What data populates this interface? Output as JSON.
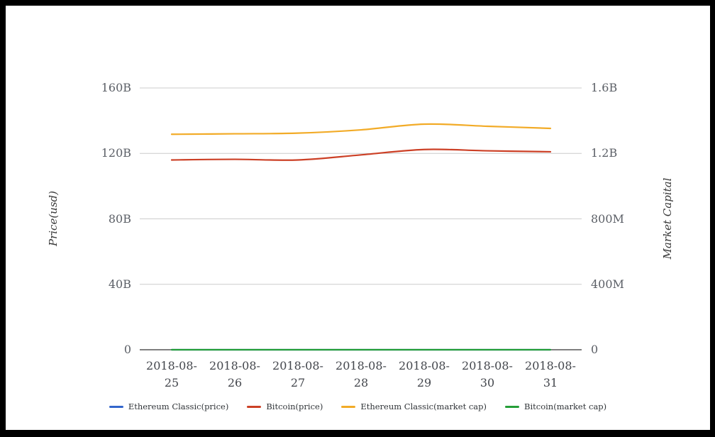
{
  "frame": {
    "background": "#ffffff",
    "border_color": "#000000"
  },
  "chart_data": {
    "type": "line",
    "title": "",
    "smooth": true,
    "categories": [
      "2018-08-25",
      "2018-08-26",
      "2018-08-27",
      "2018-08-28",
      "2018-08-29",
      "2018-08-30",
      "2018-08-31"
    ],
    "series": [
      {
        "name": "Ethereum Classic(price)",
        "color": "#3366cc",
        "axis": "left",
        "values": [
          0,
          0,
          0,
          0,
          0,
          0,
          0
        ]
      },
      {
        "name": "Bitcoin(price)",
        "color": "#cc4026",
        "axis": "left",
        "values": [
          116.0,
          116.4,
          116.0,
          119.1,
          122.4,
          121.6,
          121.0
        ]
      },
      {
        "name": "Ethereum Classic(market cap)",
        "color": "#f2ab27",
        "axis": "right",
        "values": [
          1.317,
          1.32,
          1.324,
          1.344,
          1.379,
          1.366,
          1.353
        ]
      },
      {
        "name": "Bitcoin(market cap)",
        "color": "#259e38",
        "axis": "right",
        "values": [
          0,
          0,
          0,
          0,
          0,
          0,
          0
        ]
      }
    ],
    "left_axis": {
      "title": "Price(usd)",
      "unit": "billions",
      "range": [
        0,
        160
      ],
      "ticks": [
        "0",
        "40B",
        "80B",
        "120B",
        "160B"
      ]
    },
    "right_axis": {
      "title": "Market Capital",
      "unit": "billions",
      "range": [
        0,
        1.6
      ],
      "ticks": [
        "0",
        "400M",
        "800M",
        "1.2B",
        "1.6B"
      ]
    },
    "legend": {
      "position": "bottom"
    },
    "grid": {
      "horizontal": true,
      "vertical": false,
      "color": "#cccccc",
      "axis_line_color": "#333333"
    }
  }
}
